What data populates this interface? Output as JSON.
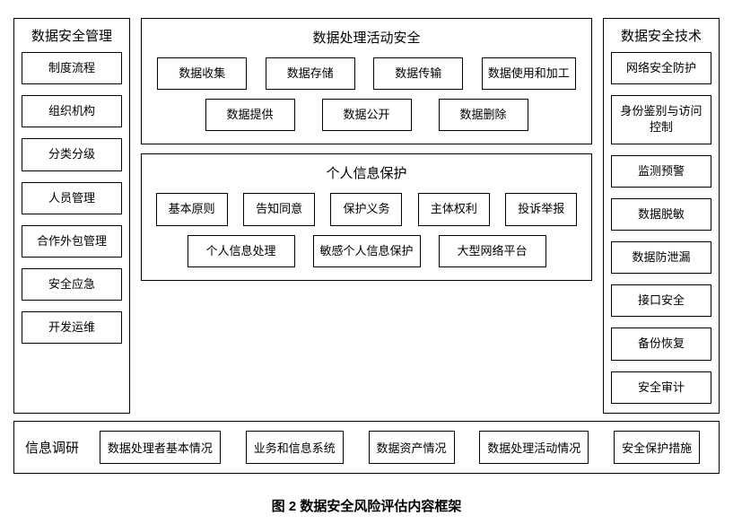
{
  "diagram": {
    "caption": "图 2 数据安全风险评估内容框架",
    "left_column": {
      "title": "数据安全管理",
      "items": [
        "制度流程",
        "组织机构",
        "分类分级",
        "人员管理",
        "合作外包管理",
        "安全应急",
        "开发运维"
      ]
    },
    "right_column": {
      "title": "数据安全技术",
      "items": [
        "网络安全防护",
        "身份鉴别与访问控制",
        "监测预警",
        "数据脱敏",
        "数据防泄漏",
        "接口安全",
        "备份恢复",
        "安全审计"
      ]
    },
    "center": {
      "activity": {
        "title": "数据处理活动安全",
        "row1": [
          "数据收集",
          "数据存储",
          "数据传输",
          "数据使用和加工"
        ],
        "row2": [
          "数据提供",
          "数据公开",
          "数据删除"
        ]
      },
      "privacy": {
        "title": "个人信息保护",
        "row1": [
          "基本原则",
          "告知同意",
          "保护义务",
          "主体权利",
          "投诉举报"
        ],
        "row2": [
          "个人信息处理",
          "敏感个人信息保护",
          "大型网络平台"
        ]
      }
    },
    "bottom": {
      "title": "信息调研",
      "items": [
        "数据处理者基本情况",
        "业务和信息系统",
        "数据资产情况",
        "数据处理活动情况",
        "安全保护措施"
      ]
    }
  },
  "styling": {
    "border_color": "#000000",
    "background_color": "#ffffff",
    "text_color": "#000000",
    "item_fontsize": 13,
    "title_fontsize": 15,
    "caption_fontsize": 15,
    "caption_fontweight": "bold"
  }
}
